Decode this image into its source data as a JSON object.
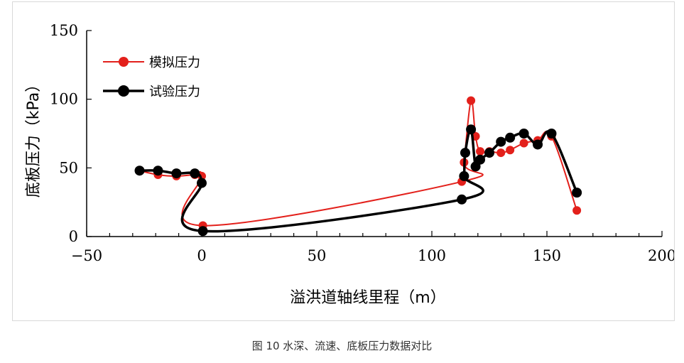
{
  "caption": "图 10 水深、流速、底板压力数据对比",
  "chart_data": {
    "type": "line",
    "xlabel": "溢洪道轴线里程（m）",
    "ylabel": "底板压力（kPa）",
    "xlim": [
      -50,
      200
    ],
    "ylim": [
      0,
      150
    ],
    "xticks": [
      -50,
      0,
      50,
      100,
      150,
      200
    ],
    "yticks": [
      0,
      50,
      100,
      150
    ],
    "xtick_labels": [
      "−50",
      "0",
      "50",
      "100",
      "150",
      "200"
    ],
    "ytick_labels": [
      "0",
      "50",
      "100",
      "150"
    ],
    "legend_position": "top-left",
    "series": [
      {
        "name": "模拟压力",
        "color": "#e3201b",
        "marker_size": 6,
        "line_width": 2,
        "points": [
          [
            -27,
            48
          ],
          [
            -19,
            45
          ],
          [
            -11,
            44
          ],
          [
            -3,
            45
          ],
          [
            0,
            44
          ],
          [
            0.5,
            8
          ],
          [
            113,
            40
          ],
          [
            114,
            54
          ],
          [
            117,
            99
          ],
          [
            119,
            73
          ],
          [
            121,
            62
          ],
          [
            125,
            62
          ],
          [
            130,
            61
          ],
          [
            134,
            63
          ],
          [
            140,
            68
          ],
          [
            146,
            70
          ],
          [
            152,
            73
          ],
          [
            163,
            19
          ]
        ]
      },
      {
        "name": "试验压力",
        "color": "#000000",
        "marker_size": 7,
        "line_width": 3.5,
        "points": [
          [
            -27,
            48
          ],
          [
            -19,
            48
          ],
          [
            -11,
            46
          ],
          [
            -3,
            46
          ],
          [
            0,
            39
          ],
          [
            0.5,
            4
          ],
          [
            113,
            27
          ],
          [
            114,
            44
          ],
          [
            114.5,
            61
          ],
          [
            117,
            78
          ],
          [
            119,
            51
          ],
          [
            121,
            56
          ],
          [
            125,
            61
          ],
          [
            130,
            69
          ],
          [
            134,
            72
          ],
          [
            140,
            75
          ],
          [
            146,
            67
          ],
          [
            152,
            75
          ],
          [
            163,
            32
          ]
        ]
      }
    ]
  }
}
